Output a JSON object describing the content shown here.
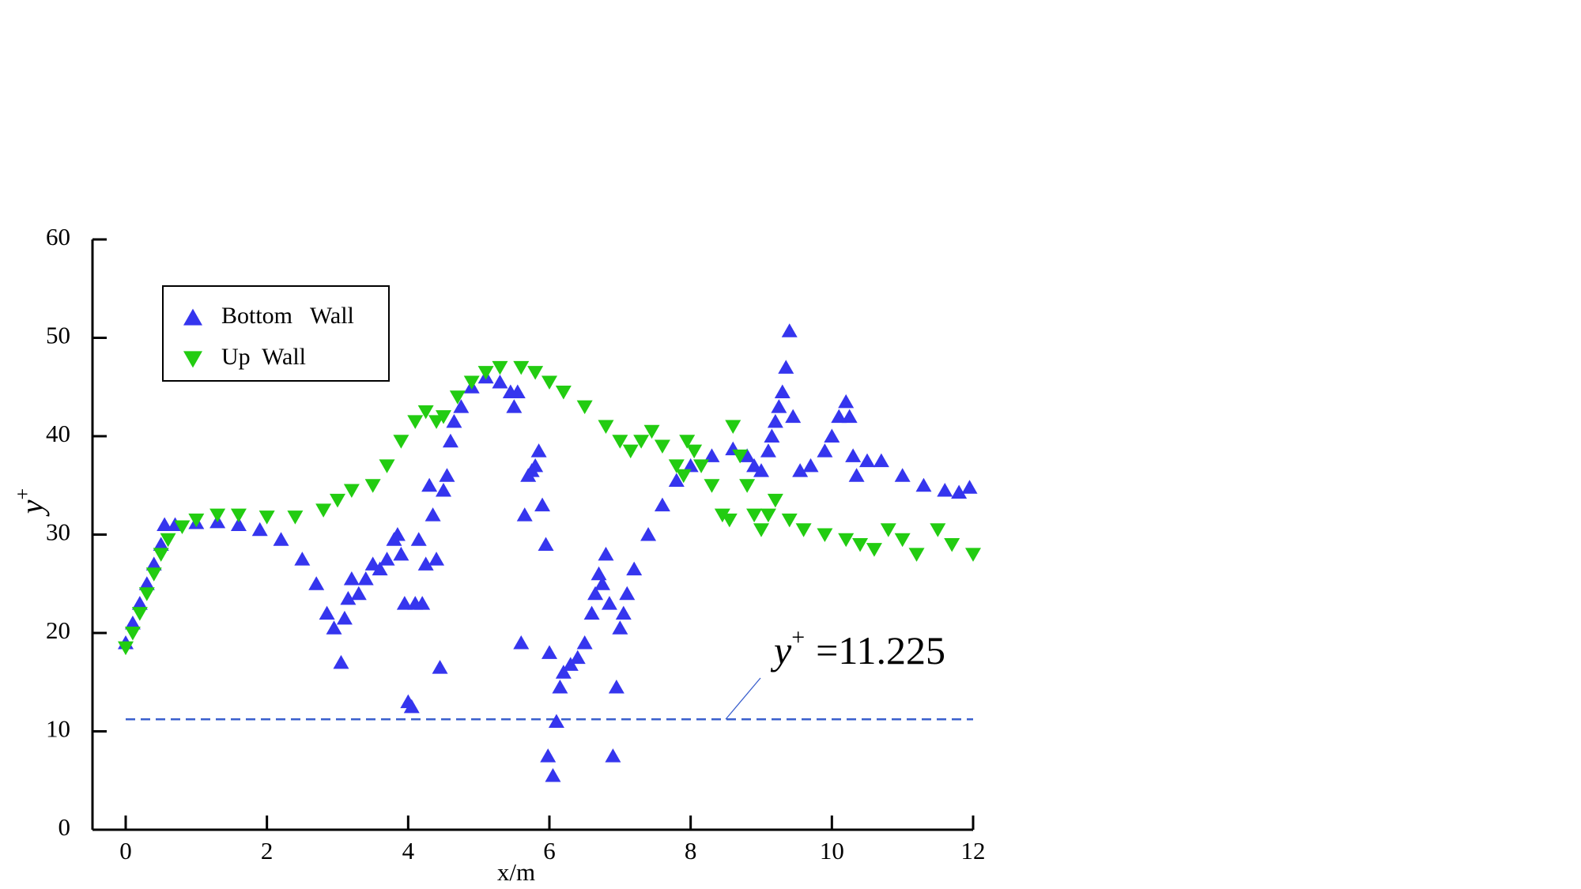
{
  "chart_data": {
    "type": "scatter",
    "xlabel": "x/m",
    "ylabel": {
      "base": "y",
      "sup": "+"
    },
    "xlim": [
      0,
      12
    ],
    "xticks": [
      0,
      2,
      4,
      6,
      8,
      10,
      12
    ],
    "ylim": [
      0,
      60
    ],
    "yticks": [
      0,
      10,
      20,
      30,
      40,
      50,
      60
    ],
    "legend": "top-left",
    "hline": {
      "value": 11.225,
      "color": "#3a5fcd",
      "base": "y",
      "sup": "+",
      "label": "=11.225"
    },
    "series": [
      {
        "name": "Bottom   Wall",
        "color": "#3535ee",
        "marker": "up",
        "x": [
          0,
          0.1,
          0.2,
          0.3,
          0.4,
          0.5,
          0.55,
          0.7,
          1.0,
          1.3,
          1.6,
          1.9,
          2.2,
          2.5,
          2.7,
          2.85,
          2.95,
          3.05,
          3.1,
          3.15,
          3.2,
          3.3,
          3.4,
          3.5,
          3.6,
          3.7,
          3.8,
          3.85,
          3.9,
          3.95,
          4.0,
          4.05,
          4.1,
          4.15,
          4.2,
          4.25,
          4.3,
          4.35,
          4.4,
          4.45,
          4.5,
          4.55,
          4.6,
          4.65,
          4.75,
          4.9,
          5.1,
          5.3,
          5.45,
          5.5,
          5.55,
          5.6,
          5.65,
          5.7,
          5.75,
          5.8,
          5.85,
          5.9,
          5.95,
          5.98,
          6.0,
          6.05,
          6.1,
          6.15,
          6.2,
          6.3,
          6.4,
          6.5,
          6.6,
          6.65,
          6.7,
          6.75,
          6.8,
          6.85,
          6.9,
          6.95,
          7.0,
          7.05,
          7.1,
          7.2,
          7.4,
          7.6,
          7.8,
          8.0,
          8.3,
          8.6,
          8.8,
          8.9,
          9.0,
          9.1,
          9.15,
          9.2,
          9.25,
          9.3,
          9.35,
          9.4,
          9.45,
          9.55,
          9.7,
          9.9,
          10.0,
          10.1,
          10.2,
          10.25,
          10.3,
          10.35,
          10.5,
          10.7,
          11.0,
          11.3,
          11.6,
          11.8,
          11.95
        ],
        "values": [
          19,
          21,
          23,
          25,
          27,
          29,
          31,
          31,
          31.2,
          31.3,
          31,
          30.5,
          29.5,
          27.5,
          25,
          22,
          20.5,
          17,
          21.5,
          23.5,
          25.5,
          24,
          25.5,
          27,
          26.5,
          27.5,
          29.5,
          30,
          28,
          23,
          13,
          12.5,
          23,
          29.5,
          23,
          27,
          35,
          32,
          27.5,
          16.5,
          34.5,
          36,
          39.5,
          41.5,
          43,
          45,
          46,
          45.5,
          44.5,
          43,
          44.5,
          19,
          32,
          36,
          36.5,
          37,
          38.5,
          33,
          29,
          7.5,
          18,
          5.5,
          11,
          14.5,
          16,
          16.8,
          17.5,
          19,
          22,
          24,
          26,
          25,
          28,
          23,
          7.5,
          14.5,
          20.5,
          22,
          24,
          26.5,
          30,
          33,
          35.5,
          37,
          38,
          38.7,
          38,
          37,
          36.5,
          38.5,
          40,
          41.5,
          43,
          44.5,
          47,
          50.7,
          42,
          36.5,
          37,
          38.5,
          40,
          42,
          43.5,
          42,
          38,
          36,
          37.5,
          37.5,
          36,
          35,
          34.5,
          34.3,
          34.8
        ]
      },
      {
        "name": "Up  Wall",
        "color": "#22cc11",
        "marker": "down",
        "x": [
          0,
          0.1,
          0.2,
          0.3,
          0.4,
          0.5,
          0.6,
          0.8,
          1.0,
          1.3,
          1.6,
          2.0,
          2.4,
          2.8,
          3.0,
          3.2,
          3.5,
          3.7,
          3.9,
          4.1,
          4.25,
          4.4,
          4.5,
          4.7,
          4.9,
          5.1,
          5.3,
          5.6,
          5.8,
          6.0,
          6.2,
          6.5,
          6.8,
          7.0,
          7.15,
          7.3,
          7.45,
          7.6,
          7.8,
          7.9,
          7.95,
          8.05,
          8.15,
          8.3,
          8.45,
          8.55,
          8.6,
          8.7,
          8.8,
          8.9,
          9.0,
          9.1,
          9.2,
          9.4,
          9.6,
          9.9,
          10.2,
          10.4,
          10.6,
          10.8,
          11.0,
          11.2,
          11.5,
          11.7,
          12.0
        ],
        "values": [
          18.5,
          20,
          22,
          24,
          26,
          28,
          29.5,
          30.8,
          31.5,
          32,
          32,
          31.8,
          31.8,
          32.5,
          33.5,
          34.5,
          35,
          37,
          39.5,
          41.5,
          42.5,
          41.5,
          42,
          44,
          45.5,
          46.5,
          47,
          47,
          46.5,
          45.5,
          44.5,
          43,
          41,
          39.5,
          38.5,
          39.5,
          40.5,
          39,
          37,
          36,
          39.5,
          38.5,
          37,
          35,
          32,
          31.5,
          41,
          38,
          35,
          32,
          30.5,
          32,
          33.5,
          31.5,
          30.5,
          30,
          29.5,
          29,
          28.5,
          30.5,
          29.5,
          28,
          30.5,
          29,
          28
        ]
      }
    ]
  }
}
